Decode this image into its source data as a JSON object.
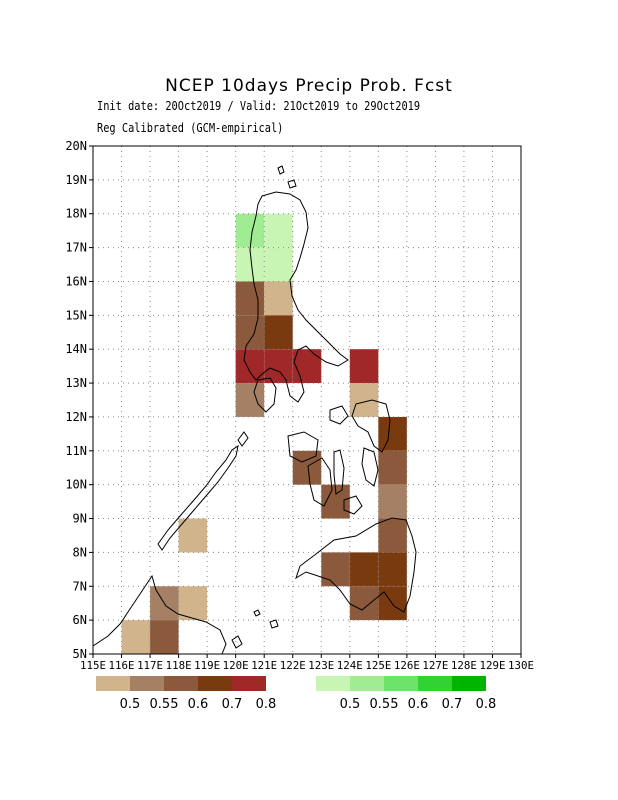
{
  "title": "NCEP 10days Precip Prob. Fcst",
  "subtitle1": "Init date: 20Oct2019 / Valid: 21Oct2019 to 29Oct2019",
  "subtitle2": "Reg Calibrated (GCM-empirical)",
  "chart_data": {
    "type": "heatmap",
    "lon_range": [
      115,
      130
    ],
    "lat_range": [
      5,
      20
    ],
    "cell_size_deg": 1,
    "grid": true,
    "y_ticks": [
      "5N",
      "6N",
      "7N",
      "8N",
      "9N",
      "10N",
      "11N",
      "12N",
      "13N",
      "14N",
      "15N",
      "16N",
      "17N",
      "18N",
      "19N",
      "20N"
    ],
    "x_ticks": [
      "115E",
      "116E",
      "117E",
      "118E",
      "119E",
      "120E",
      "121E",
      "122E",
      "123E",
      "124E",
      "125E",
      "126E",
      "127E",
      "128E",
      "129E",
      "130E"
    ],
    "dry_legend": {
      "labels": [
        "0.5",
        "0.55",
        "0.6",
        "0.7",
        "0.8"
      ],
      "colors": [
        "#d2b48c",
        "#a68064",
        "#8b5a3c",
        "#7a3a10",
        "#a02828"
      ]
    },
    "wet_legend": {
      "labels": [
        "0.5",
        "0.55",
        "0.6",
        "0.7",
        "0.8"
      ],
      "colors": [
        "#c8f5b4",
        "#a0ec92",
        "#6ee36a",
        "#32d232",
        "#00b400"
      ]
    },
    "cells": [
      {
        "lon": 120.5,
        "lat": 17.5,
        "prob": 0.55,
        "cat": "wet"
      },
      {
        "lon": 121.5,
        "lat": 17.5,
        "prob": 0.5,
        "cat": "wet"
      },
      {
        "lon": 120.5,
        "lat": 16.5,
        "prob": 0.5,
        "cat": "wet"
      },
      {
        "lon": 121.5,
        "lat": 16.5,
        "prob": 0.5,
        "cat": "wet"
      },
      {
        "lon": 120.5,
        "lat": 15.5,
        "prob": 0.6,
        "cat": "dry"
      },
      {
        "lon": 121.5,
        "lat": 15.5,
        "prob": 0.5,
        "cat": "dry"
      },
      {
        "lon": 120.5,
        "lat": 14.5,
        "prob": 0.6,
        "cat": "dry"
      },
      {
        "lon": 121.5,
        "lat": 14.5,
        "prob": 0.7,
        "cat": "dry"
      },
      {
        "lon": 120.5,
        "lat": 13.5,
        "prob": 0.8,
        "cat": "dry"
      },
      {
        "lon": 121.5,
        "lat": 13.5,
        "prob": 0.8,
        "cat": "dry"
      },
      {
        "lon": 122.5,
        "lat": 13.5,
        "prob": 0.8,
        "cat": "dry"
      },
      {
        "lon": 124.5,
        "lat": 13.5,
        "prob": 0.8,
        "cat": "dry"
      },
      {
        "lon": 120.5,
        "lat": 12.5,
        "prob": 0.55,
        "cat": "dry"
      },
      {
        "lon": 124.5,
        "lat": 12.5,
        "prob": 0.5,
        "cat": "dry"
      },
      {
        "lon": 125.5,
        "lat": 11.5,
        "prob": 0.7,
        "cat": "dry"
      },
      {
        "lon": 122.5,
        "lat": 10.5,
        "prob": 0.6,
        "cat": "dry"
      },
      {
        "lon": 125.5,
        "lat": 10.5,
        "prob": 0.6,
        "cat": "dry"
      },
      {
        "lon": 123.5,
        "lat": 9.5,
        "prob": 0.6,
        "cat": "dry"
      },
      {
        "lon": 125.5,
        "lat": 9.5,
        "prob": 0.55,
        "cat": "dry"
      },
      {
        "lon": 118.5,
        "lat": 8.5,
        "prob": 0.5,
        "cat": "dry"
      },
      {
        "lon": 125.5,
        "lat": 8.5,
        "prob": 0.6,
        "cat": "dry"
      },
      {
        "lon": 123.5,
        "lat": 7.5,
        "prob": 0.6,
        "cat": "dry"
      },
      {
        "lon": 124.5,
        "lat": 7.5,
        "prob": 0.7,
        "cat": "dry"
      },
      {
        "lon": 125.5,
        "lat": 7.5,
        "prob": 0.7,
        "cat": "dry"
      },
      {
        "lon": 117.5,
        "lat": 6.5,
        "prob": 0.55,
        "cat": "dry"
      },
      {
        "lon": 118.5,
        "lat": 6.5,
        "prob": 0.5,
        "cat": "dry"
      },
      {
        "lon": 124.5,
        "lat": 6.5,
        "prob": 0.6,
        "cat": "dry"
      },
      {
        "lon": 125.5,
        "lat": 6.5,
        "prob": 0.7,
        "cat": "dry"
      },
      {
        "lon": 116.5,
        "lat": 5.5,
        "prob": 0.5,
        "cat": "dry"
      },
      {
        "lon": 117.5,
        "lat": 5.5,
        "prob": 0.6,
        "cat": "dry"
      }
    ]
  }
}
